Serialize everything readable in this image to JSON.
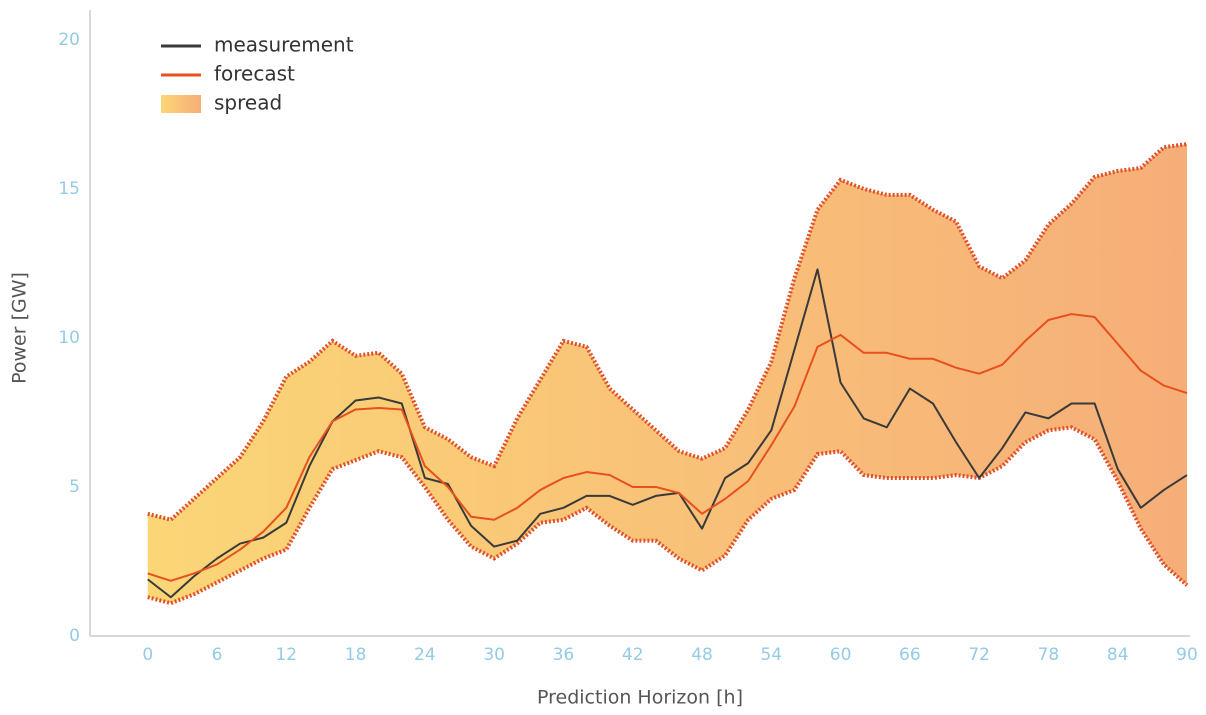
{
  "chart_data": {
    "type": "line",
    "xlabel": "Prediction Horizon [h]",
    "ylabel": "Power [GW]",
    "x": [
      0,
      2,
      4,
      6,
      8,
      10,
      12,
      14,
      16,
      18,
      20,
      22,
      24,
      26,
      28,
      30,
      32,
      34,
      36,
      38,
      40,
      42,
      44,
      46,
      48,
      50,
      52,
      54,
      56,
      58,
      60,
      62,
      64,
      66,
      68,
      70,
      72,
      74,
      76,
      78,
      80,
      82,
      84,
      86,
      88,
      90
    ],
    "series": [
      {
        "name": "measurement",
        "color": "#3a3a3a",
        "values": [
          1.9,
          1.3,
          2.0,
          2.6,
          3.1,
          3.3,
          3.8,
          5.7,
          7.2,
          7.9,
          8.0,
          7.8,
          5.3,
          5.1,
          3.7,
          3.0,
          3.2,
          4.1,
          4.3,
          4.7,
          4.7,
          4.4,
          4.7,
          4.8,
          3.6,
          5.3,
          5.8,
          6.9,
          9.6,
          12.3,
          8.5,
          7.3,
          7.0,
          8.3,
          7.8,
          6.5,
          5.3,
          6.3,
          7.5,
          7.3,
          7.8,
          7.8,
          5.6,
          4.3,
          4.9,
          5.4
        ]
      },
      {
        "name": "forecast",
        "color": "#e8501e",
        "values": [
          2.1,
          1.85,
          2.1,
          2.4,
          2.9,
          3.5,
          4.3,
          6.0,
          7.2,
          7.6,
          7.65,
          7.6,
          5.7,
          5.0,
          4.0,
          3.9,
          4.3,
          4.9,
          5.3,
          5.5,
          5.4,
          5.0,
          5.0,
          4.8,
          4.1,
          4.6,
          5.2,
          6.4,
          7.7,
          9.7,
          10.1,
          9.5,
          9.5,
          9.3,
          9.3,
          9.0,
          8.8,
          9.1,
          9.9,
          10.6,
          10.8,
          10.7,
          9.8,
          8.9,
          8.4,
          8.15
        ]
      },
      {
        "name": "spread",
        "colors": [
          "#fbd677",
          "#f6ae78"
        ],
        "border_color": "#e0502a",
        "upper": [
          4.1,
          3.9,
          4.6,
          5.3,
          6.0,
          7.2,
          8.7,
          9.2,
          9.9,
          9.4,
          9.5,
          8.8,
          7.0,
          6.6,
          6.0,
          5.7,
          7.3,
          8.6,
          9.9,
          9.7,
          8.3,
          7.6,
          6.9,
          6.2,
          5.95,
          6.3,
          7.6,
          9.2,
          12.0,
          14.3,
          15.3,
          15.0,
          14.8,
          14.8,
          14.3,
          13.9,
          12.4,
          12.0,
          12.6,
          13.8,
          14.5,
          15.4,
          15.6,
          15.7,
          16.4,
          16.5
        ],
        "lower": [
          1.3,
          1.1,
          1.4,
          1.8,
          2.2,
          2.6,
          2.9,
          4.3,
          5.6,
          5.9,
          6.2,
          6.0,
          5.0,
          3.9,
          3.0,
          2.6,
          3.1,
          3.8,
          3.9,
          4.3,
          3.7,
          3.2,
          3.2,
          2.6,
          2.2,
          2.7,
          3.9,
          4.6,
          4.9,
          6.1,
          6.2,
          5.4,
          5.3,
          5.3,
          5.3,
          5.4,
          5.3,
          5.7,
          6.5,
          6.9,
          7.0,
          6.6,
          5.2,
          3.6,
          2.4,
          1.7
        ]
      }
    ],
    "xlim": [
      -5,
      90
    ],
    "xticks": [
      0,
      6,
      12,
      18,
      24,
      30,
      36,
      42,
      48,
      54,
      60,
      66,
      72,
      78,
      84,
      90
    ],
    "ylim": [
      0,
      21
    ],
    "yticks": [
      0,
      5,
      10,
      15,
      20
    ],
    "grid": false,
    "legend": "upper left"
  }
}
